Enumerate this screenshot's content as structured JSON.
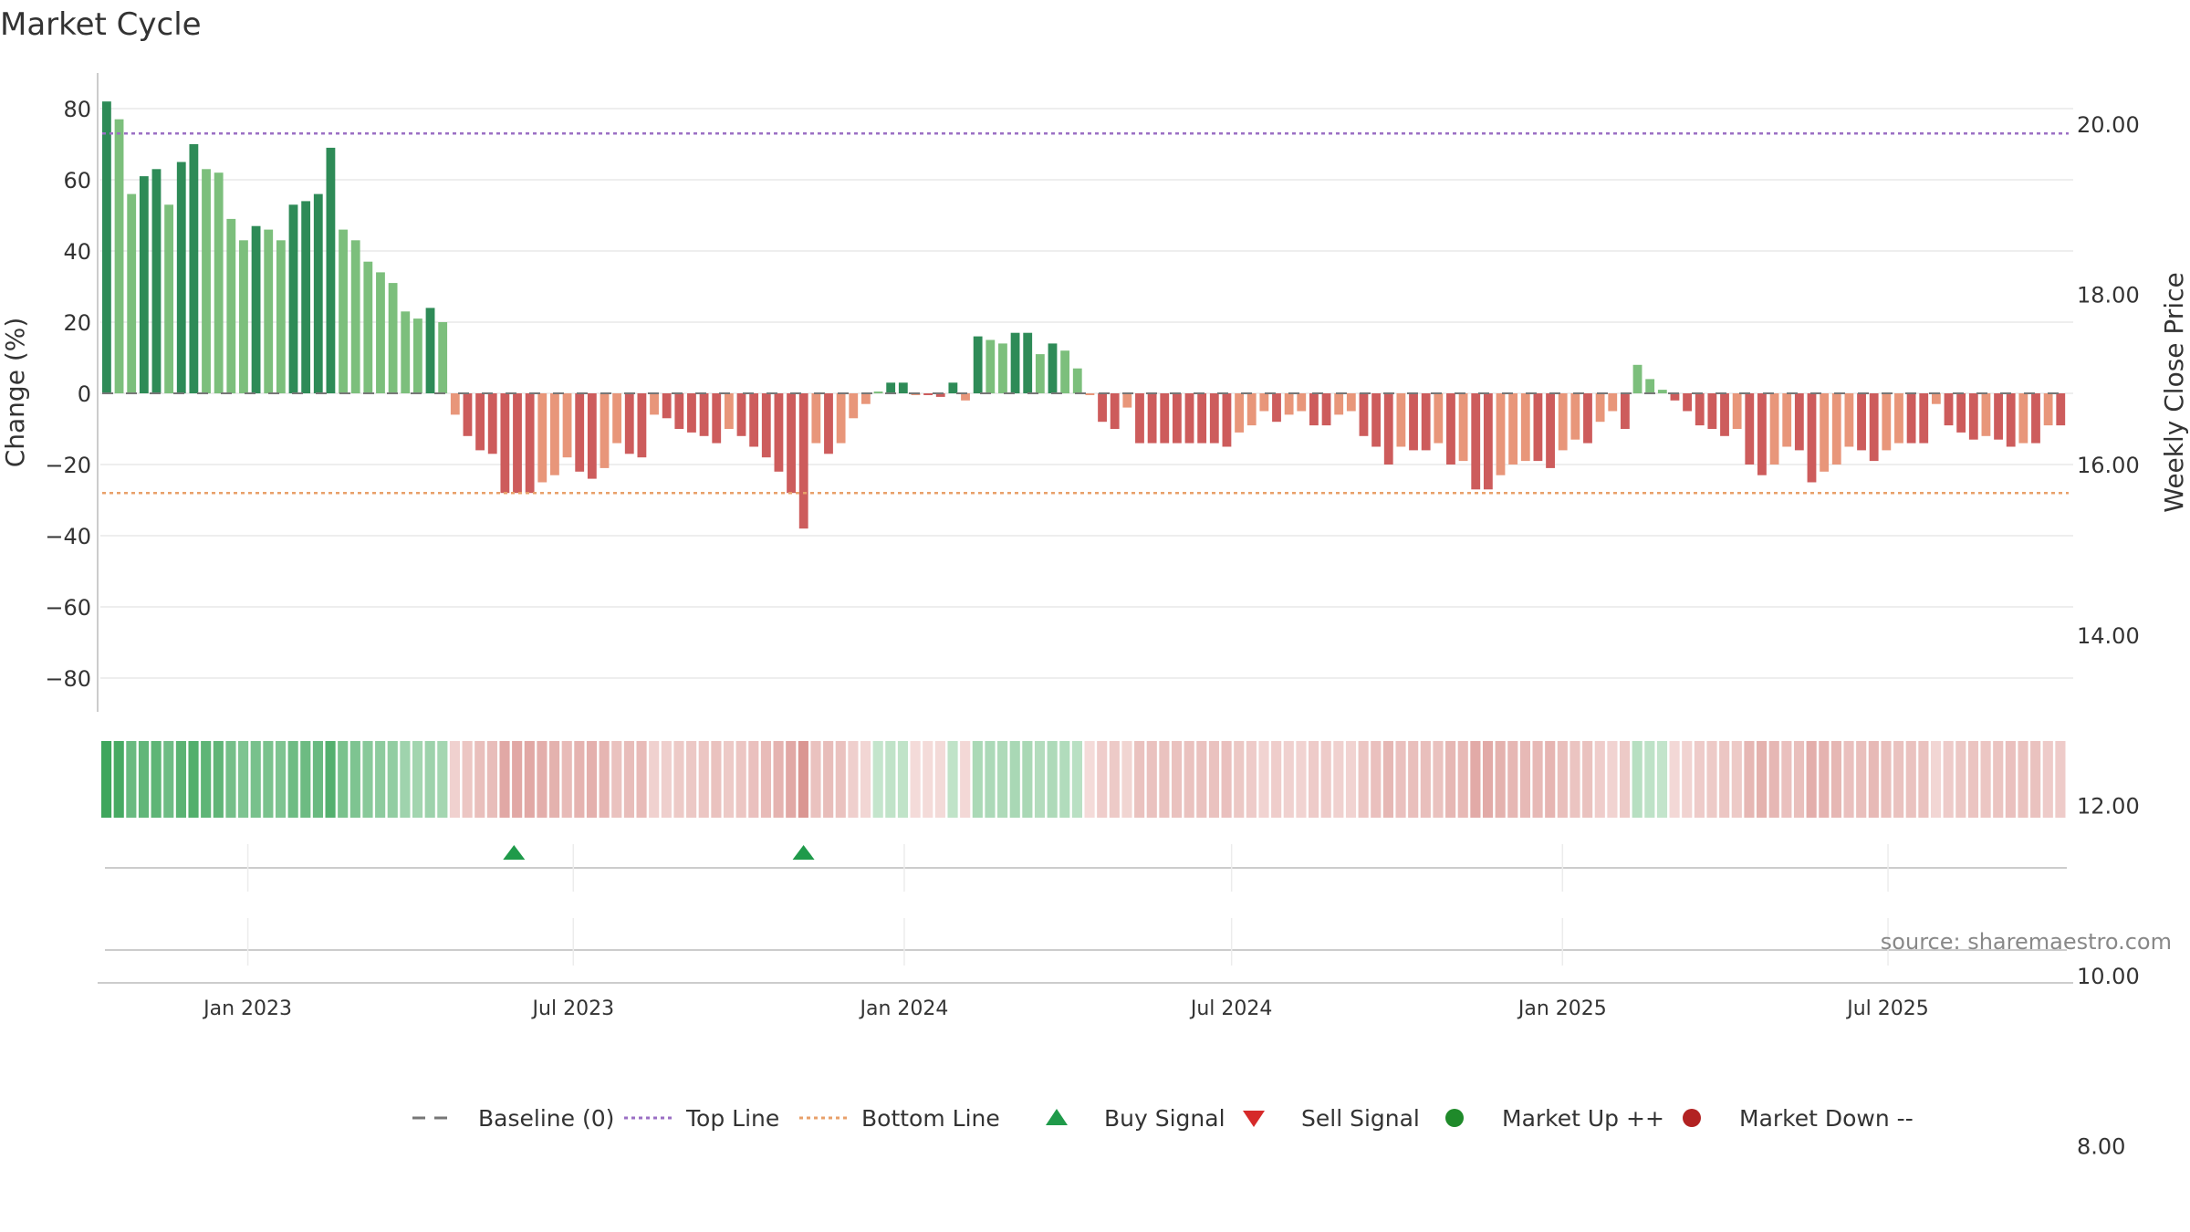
{
  "chart_data": {
    "type": "bar",
    "title": "Market Cycle",
    "ylabel_left": "Change (%)",
    "ylabel_right": "Weekly Close Price",
    "source": "source: sharemaestro.com",
    "x_start": "2022-10-10",
    "x_end": "2025-10-13",
    "ylim_left": [
      -90,
      90
    ],
    "yticks_left": [
      80,
      60,
      40,
      20,
      0,
      -20,
      -40,
      -60,
      -80
    ],
    "ytick_labels_left": [
      "80",
      "60",
      "40",
      "20",
      "0",
      "−20",
      "−40",
      "−60",
      "−80"
    ],
    "ylim_right": [
      6.5,
      21
    ],
    "yticks_right": [
      20,
      18,
      16,
      14,
      12,
      10,
      8
    ],
    "ytick_labels_right": [
      "20.00",
      "18.00",
      "16.00",
      "14.00",
      "12.00",
      "10.00",
      "8.00"
    ],
    "x_ticks": [
      {
        "date": "2023-01-01",
        "label": "Jan 2023"
      },
      {
        "date": "2023-07-01",
        "label": "Jul 2023"
      },
      {
        "date": "2024-01-01",
        "label": "Jan 2024"
      },
      {
        "date": "2024-07-01",
        "label": "Jul 2024"
      },
      {
        "date": "2025-01-01",
        "label": "Jan 2025"
      },
      {
        "date": "2025-07-01",
        "label": "Jul 2025"
      }
    ],
    "top_line": 73,
    "bottom_line": -28,
    "grid": true,
    "legend_position": "bottom-center",
    "values": [
      82,
      77,
      56,
      61,
      63,
      53,
      65,
      70,
      63,
      62,
      49,
      43,
      47,
      46,
      43,
      53,
      54,
      56,
      69,
      46,
      43,
      37,
      34,
      31,
      23,
      21,
      24,
      20,
      -6,
      -12,
      -16,
      -17,
      -28,
      -28,
      -28,
      -25,
      -23,
      -18,
      -22,
      -24,
      -21,
      -14,
      -17,
      -18,
      -6,
      -7,
      -10,
      -11,
      -12,
      -14,
      -10,
      -12,
      -15,
      -18,
      -22,
      -28,
      -38,
      -14,
      -17,
      -14,
      -7,
      -3,
      0.5,
      3,
      3,
      -0.5,
      -0.5,
      -1,
      3,
      -2,
      16,
      15,
      14,
      17,
      17,
      11,
      14,
      12,
      7,
      -0.5,
      -8,
      -10,
      -4,
      -14,
      -14,
      -14,
      -14,
      -14,
      -14,
      -14,
      -15,
      -11,
      -9,
      -5,
      -8,
      -6,
      -5,
      -9,
      -9,
      -6,
      -5,
      -12,
      -15,
      -20,
      -15,
      -16,
      -16,
      -14,
      -20,
      -19,
      -27,
      -27,
      -23,
      -20,
      -19,
      -19,
      -21,
      -16,
      -13,
      -14,
      -8,
      -5,
      -10,
      8,
      4,
      1,
      -2,
      -5,
      -9,
      -10,
      -12,
      -10,
      -20,
      -23,
      -20,
      -15,
      -16,
      -25,
      -22,
      -20,
      -15,
      -16,
      -19,
      -16,
      -14,
      -14,
      -14,
      -3,
      -9,
      -11,
      -13,
      -12,
      -13,
      -15,
      -14,
      -14,
      -9,
      -9
    ],
    "buy_signals": [
      "2023-05-29",
      "2023-11-06"
    ],
    "sell_signals": [],
    "market_up": [],
    "market_down": [],
    "legend": [
      {
        "label": "Baseline (0)",
        "style": "dash-gray",
        "color": "#777777"
      },
      {
        "label": "Top Line",
        "style": "dot-line",
        "color": "#9b6fc4"
      },
      {
        "label": "Bottom Line",
        "style": "dot-line",
        "color": "#e8a06a"
      },
      {
        "label": "Buy Signal",
        "style": "triangle-up",
        "color": "#1f9a4a"
      },
      {
        "label": "Sell Signal",
        "style": "triangle-down",
        "color": "#d62a2a"
      },
      {
        "label": "Market Up ++",
        "style": "circle",
        "color": "#1f8a2a"
      },
      {
        "label": "Market Down --",
        "style": "circle",
        "color": "#b22222"
      }
    ],
    "colors": {
      "pos_dark": "#2e8b57",
      "pos_light": "#7cbf7c",
      "neg_dark": "#cd5c5c",
      "neg_light": "#e8967a",
      "top_line": "#9b6fc4",
      "bottom_line": "#e8a06a",
      "buy": "#1f9a4a"
    }
  }
}
